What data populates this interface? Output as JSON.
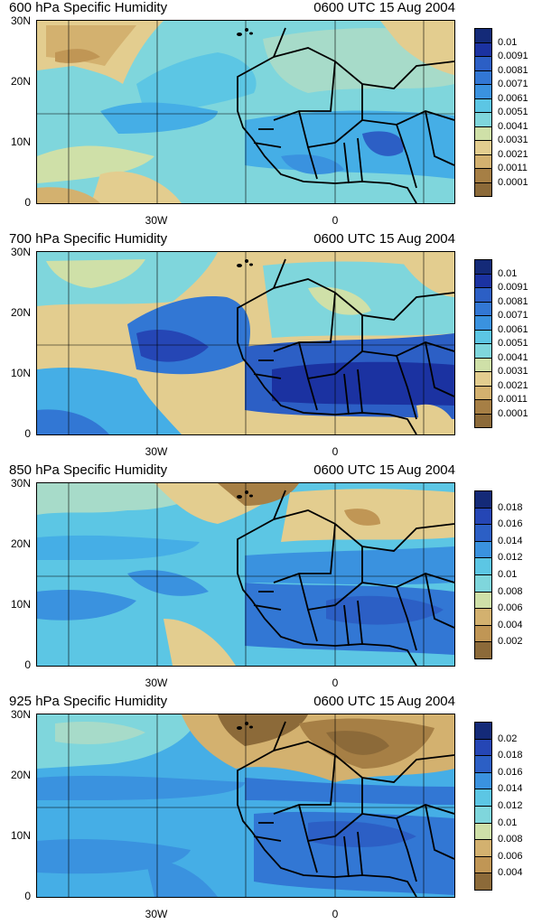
{
  "palette": [
    "#8c6a39",
    "#a67f45",
    "#c09655",
    "#d3b16f",
    "#e3cd8f",
    "#cfe0a8",
    "#a7dbc9",
    "#7fd6dc",
    "#5cc6e4",
    "#45aee6",
    "#3a92df",
    "#3277d4",
    "#2c5fc5",
    "#2546b5",
    "#1b32a1",
    "#142a78"
  ],
  "y_labels": [
    "30N",
    "20N",
    "10N",
    "0"
  ],
  "x_labels": [
    "30W",
    "0"
  ],
  "panels": [
    {
      "title_left": "600 hPa Specific Humidity",
      "title_right": "0600 UTC 15 Aug 2004",
      "colorbar": [
        "0.01",
        "0.0091",
        "0.0081",
        "0.0071",
        "0.0061",
        "0.0051",
        "0.0041",
        "0.0031",
        "0.0021",
        "0.0011",
        "0.0001"
      ],
      "field": "p600"
    },
    {
      "title_left": "700 hPa Specific Humidity",
      "title_right": "0600 UTC 15 Aug 2004",
      "colorbar": [
        "0.01",
        "0.0091",
        "0.0081",
        "0.0071",
        "0.0061",
        "0.0051",
        "0.0041",
        "0.0031",
        "0.0021",
        "0.0011",
        "0.0001"
      ],
      "field": "p700"
    },
    {
      "title_left": "850 hPa Specific Humidity",
      "title_right": "0600 UTC 15 Aug 2004",
      "colorbar": [
        "0.018",
        "0.016",
        "0.014",
        "0.012",
        "0.01",
        "0.008",
        "0.006",
        "0.004",
        "0.002"
      ],
      "field": "p850"
    },
    {
      "title_left": "925 hPa Specific Humidity",
      "title_right": "0600 UTC 15 Aug 2004",
      "colorbar": [
        "0.02",
        "0.018",
        "0.016",
        "0.014",
        "0.012",
        "0.01",
        "0.008",
        "0.006",
        "0.004"
      ],
      "field": "p925"
    }
  ]
}
